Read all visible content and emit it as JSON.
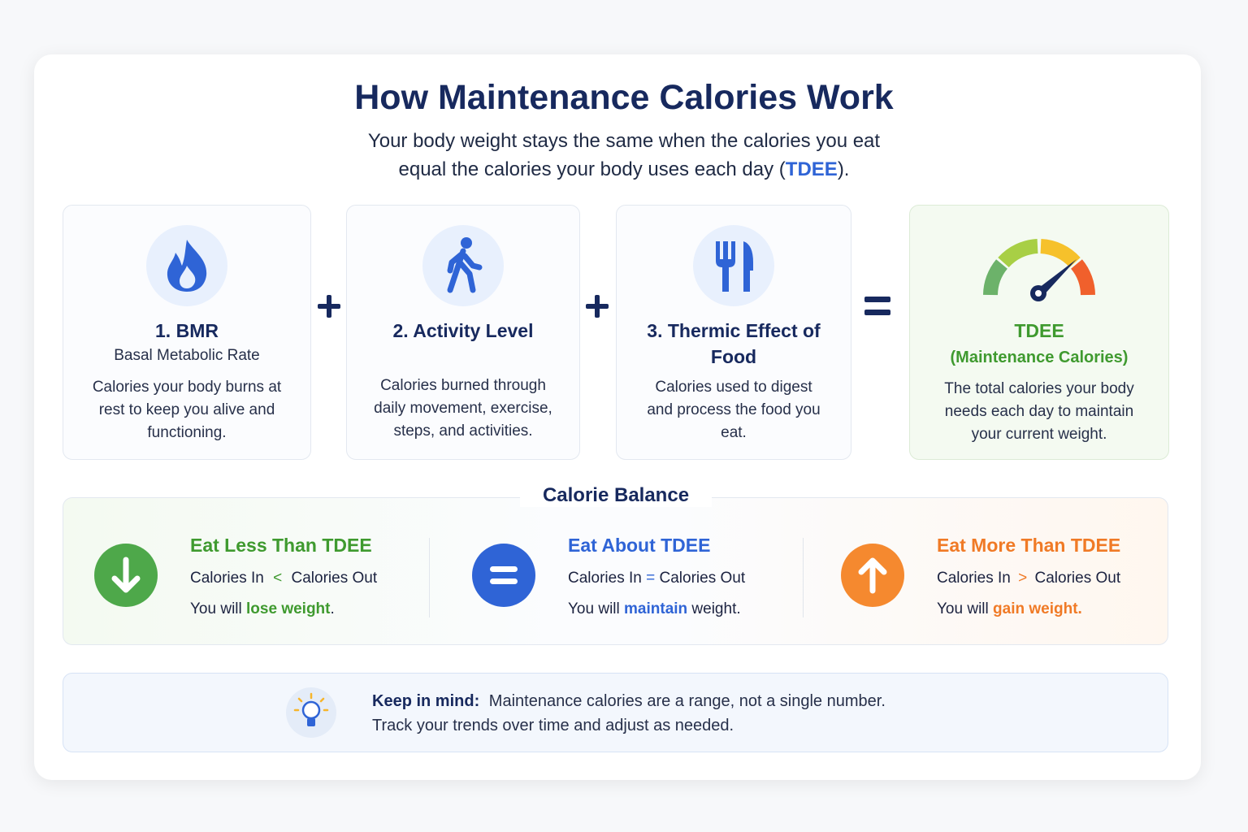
{
  "header": {
    "title": "How Maintenance Calories Work",
    "subtitle": [
      "Your body weight stays the same when the calories you eat",
      "equal the calories your body uses each day (",
      "TDEE",
      ")."
    ]
  },
  "components": [
    {
      "title": "1. BMR",
      "subtitle": "Basal Metabolic Rate",
      "description": "Calories your body burns at rest to keep you alive and functioning."
    },
    {
      "title": "2. Activity Level",
      "description": "Calories burned through daily movement, exercise, steps, and activities."
    },
    {
      "title": "3. Thermic Effect of Food",
      "description": "Calories used to digest and process the food you eat."
    }
  ],
  "result": {
    "title": "TDEE",
    "subtitle": "(Maintenance Calories)",
    "description": "The total calories your body needs each day to maintain your current weight."
  },
  "balance": {
    "title": "Calorie Balance",
    "items": [
      {
        "heading": "Eat Less Than TDEE",
        "left": "Calories In",
        "operator": "<",
        "right": "Calories Out",
        "result": [
          "You will",
          "lose weight",
          "."
        ]
      },
      {
        "heading": "Eat About TDEE",
        "left": "Calories In",
        "operator": "=",
        "right": "Calories Out",
        "result": [
          "You will",
          "maintain",
          "weight."
        ]
      },
      {
        "heading": "Eat More Than TDEE",
        "left": "Calories In",
        "operator": ">",
        "right": "Calories Out",
        "result": [
          "You will",
          "gain weight."
        ]
      }
    ]
  },
  "tip": {
    "label": "Keep in mind:",
    "lines": [
      "Maintenance calories are a range, not a single number.",
      "Track your trends over time and adjust as needed."
    ]
  }
}
